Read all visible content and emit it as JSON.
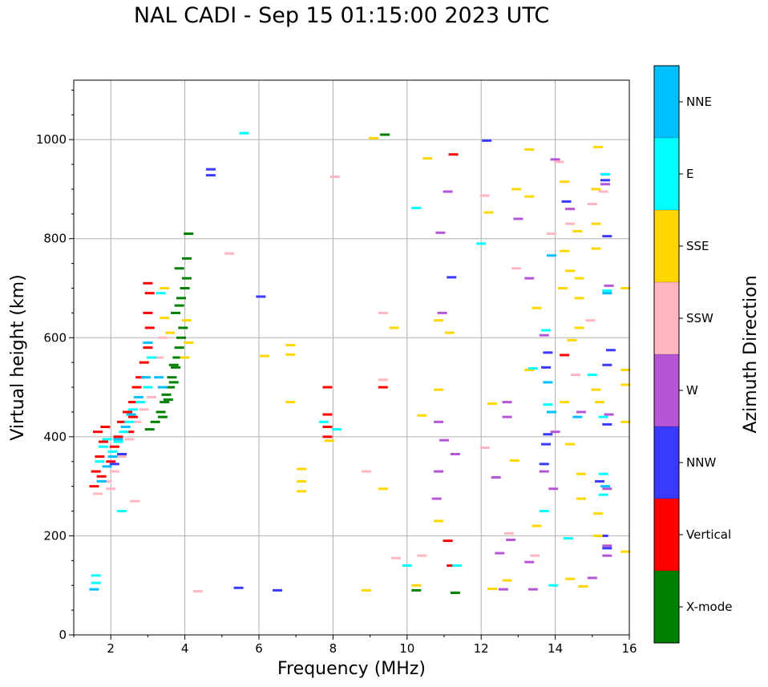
{
  "chart_data": {
    "type": "scatter",
    "title": "NAL CADI - Sep 15 01:15:00 2023 UTC",
    "xlabel": "Frequency (MHz)",
    "ylabel": "Virtual height (km)",
    "xlim": [
      1,
      16
    ],
    "ylim": [
      0,
      1120
    ],
    "xticks": [
      2,
      4,
      6,
      8,
      10,
      12,
      14,
      16
    ],
    "yticks": [
      0,
      200,
      400,
      600,
      800,
      1000
    ],
    "grid": true,
    "colorbar": {
      "label": "Azimuth Direction",
      "categories": [
        {
          "name": "X-mode",
          "color": "#008000"
        },
        {
          "name": "Vertical",
          "color": "#ff0000"
        },
        {
          "name": "NNW",
          "color": "#3a3aff"
        },
        {
          "name": "W",
          "color": "#b655d6"
        },
        {
          "name": "SSW",
          "color": "#ffb6c1"
        },
        {
          "name": "SSE",
          "color": "#ffd700"
        },
        {
          "name": "E",
          "color": "#00ffff"
        },
        {
          "name": "NNE",
          "color": "#00bfff"
        }
      ]
    },
    "series": [
      {
        "name": "X-mode",
        "points": [
          [
            3.05,
            415
          ],
          [
            3.2,
            430
          ],
          [
            3.35,
            450
          ],
          [
            3.45,
            470
          ],
          [
            3.5,
            485
          ],
          [
            3.6,
            500
          ],
          [
            3.65,
            520
          ],
          [
            3.75,
            540
          ],
          [
            3.8,
            560
          ],
          [
            3.85,
            580
          ],
          [
            3.9,
            600
          ],
          [
            3.95,
            620
          ],
          [
            3.75,
            650
          ],
          [
            3.85,
            665
          ],
          [
            3.9,
            680
          ],
          [
            4.0,
            700
          ],
          [
            4.05,
            720
          ],
          [
            4.05,
            760
          ],
          [
            4.1,
            810
          ],
          [
            3.85,
            740
          ],
          [
            9.4,
            1010
          ],
          [
            10.25,
            90
          ],
          [
            11.3,
            85
          ],
          [
            3.4,
            440
          ],
          [
            3.55,
            475
          ],
          [
            3.7,
            510
          ],
          [
            3.7,
            545
          ]
        ]
      },
      {
        "name": "Vertical",
        "points": [
          [
            1.55,
            300
          ],
          [
            1.6,
            330
          ],
          [
            1.7,
            360
          ],
          [
            1.8,
            390
          ],
          [
            1.85,
            420
          ],
          [
            2.0,
            350
          ],
          [
            2.1,
            380
          ],
          [
            2.2,
            400
          ],
          [
            2.3,
            430
          ],
          [
            2.45,
            450
          ],
          [
            2.6,
            470
          ],
          [
            2.7,
            500
          ],
          [
            2.8,
            520
          ],
          [
            2.9,
            550
          ],
          [
            3.0,
            580
          ],
          [
            3.05,
            620
          ],
          [
            3.0,
            650
          ],
          [
            3.05,
            690
          ],
          [
            3.0,
            710
          ],
          [
            7.85,
            400
          ],
          [
            7.85,
            420
          ],
          [
            7.85,
            445
          ],
          [
            7.85,
            500
          ],
          [
            9.35,
            500
          ],
          [
            11.2,
            140
          ],
          [
            11.25,
            970
          ],
          [
            11.1,
            190
          ],
          [
            14.25,
            565
          ],
          [
            2.5,
            410
          ],
          [
            2.6,
            440
          ],
          [
            1.65,
            410
          ],
          [
            1.75,
            320
          ]
        ]
      },
      {
        "name": "NNW",
        "points": [
          [
            4.7,
            940
          ],
          [
            4.7,
            928
          ],
          [
            5.45,
            95
          ],
          [
            6.5,
            90
          ],
          [
            15.4,
            805
          ],
          [
            15.5,
            575
          ],
          [
            15.4,
            545
          ],
          [
            15.4,
            425
          ],
          [
            15.2,
            310
          ],
          [
            15.3,
            200
          ],
          [
            15.4,
            175
          ],
          [
            15.35,
            930
          ],
          [
            15.35,
            918
          ],
          [
            13.8,
            570
          ],
          [
            13.75,
            540
          ],
          [
            13.8,
            405
          ],
          [
            13.75,
            385
          ],
          [
            13.7,
            345
          ],
          [
            14.3,
            875
          ],
          [
            11.2,
            722
          ],
          [
            6.05,
            683
          ],
          [
            12.15,
            998
          ],
          [
            2.1,
            345
          ],
          [
            2.3,
            365
          ]
        ]
      },
      {
        "name": "W",
        "points": [
          [
            12.7,
            440
          ],
          [
            12.7,
            470
          ],
          [
            12.8,
            192
          ],
          [
            12.5,
            165
          ],
          [
            12.6,
            92
          ],
          [
            13.4,
            92
          ],
          [
            13.3,
            147
          ],
          [
            13.0,
            840
          ],
          [
            13.3,
            720
          ],
          [
            13.7,
            330
          ],
          [
            13.95,
            295
          ],
          [
            14.0,
            410
          ],
          [
            14.4,
            860
          ],
          [
            14.0,
            960
          ],
          [
            15.0,
            115
          ],
          [
            15.4,
            160
          ],
          [
            15.4,
            180
          ],
          [
            15.4,
            295
          ],
          [
            15.45,
            445
          ],
          [
            15.35,
            910
          ],
          [
            15.45,
            705
          ],
          [
            10.85,
            330
          ],
          [
            10.8,
            275
          ],
          [
            10.85,
            430
          ],
          [
            11.0,
            393
          ],
          [
            11.3,
            365
          ],
          [
            11.1,
            895
          ],
          [
            10.95,
            650
          ],
          [
            10.9,
            812
          ],
          [
            12.4,
            318
          ],
          [
            13.7,
            605
          ],
          [
            14.7,
            450
          ]
        ]
      },
      {
        "name": "SSW",
        "points": [
          [
            1.65,
            285
          ],
          [
            1.9,
            310
          ],
          [
            2.1,
            330
          ],
          [
            2.3,
            360
          ],
          [
            2.5,
            395
          ],
          [
            2.7,
            430
          ],
          [
            2.9,
            455
          ],
          [
            3.1,
            480
          ],
          [
            3.3,
            560
          ],
          [
            3.4,
            600
          ],
          [
            4.35,
            88
          ],
          [
            8.05,
            925
          ],
          [
            8.9,
            330
          ],
          [
            9.35,
            515
          ],
          [
            9.35,
            650
          ],
          [
            9.7,
            155
          ],
          [
            10.4,
            160
          ],
          [
            12.1,
            887
          ],
          [
            12.1,
            378
          ],
          [
            12.75,
            205
          ],
          [
            12.95,
            740
          ],
          [
            13.45,
            160
          ],
          [
            13.9,
            810
          ],
          [
            14.1,
            955
          ],
          [
            14.4,
            830
          ],
          [
            14.55,
            525
          ],
          [
            14.95,
            635
          ],
          [
            15.0,
            870
          ],
          [
            15.3,
            895
          ],
          [
            15.4,
            690
          ],
          [
            5.2,
            770
          ],
          [
            2.65,
            270
          ],
          [
            2.0,
            295
          ]
        ]
      },
      {
        "name": "SSE",
        "points": [
          [
            3.45,
            700
          ],
          [
            3.45,
            640
          ],
          [
            3.6,
            610
          ],
          [
            4.05,
            635
          ],
          [
            4.1,
            590
          ],
          [
            4.0,
            560
          ],
          [
            6.15,
            563
          ],
          [
            6.85,
            585
          ],
          [
            6.85,
            566
          ],
          [
            6.85,
            470
          ],
          [
            7.15,
            335
          ],
          [
            7.15,
            310
          ],
          [
            7.15,
            290
          ],
          [
            7.9,
            392
          ],
          [
            8.9,
            90
          ],
          [
            9.1,
            1003
          ],
          [
            9.35,
            295
          ],
          [
            9.65,
            620
          ],
          [
            10.25,
            100
          ],
          [
            10.4,
            443
          ],
          [
            10.55,
            962
          ],
          [
            10.85,
            635
          ],
          [
            10.85,
            495
          ],
          [
            10.85,
            230
          ],
          [
            11.15,
            610
          ],
          [
            12.2,
            853
          ],
          [
            12.3,
            93
          ],
          [
            12.7,
            110
          ],
          [
            12.95,
            900
          ],
          [
            12.9,
            352
          ],
          [
            13.3,
            885
          ],
          [
            13.3,
            980
          ],
          [
            13.3,
            535
          ],
          [
            13.5,
            660
          ],
          [
            13.5,
            220
          ],
          [
            14.2,
            700
          ],
          [
            14.25,
            775
          ],
          [
            14.25,
            915
          ],
          [
            14.4,
            735
          ],
          [
            14.45,
            595
          ],
          [
            14.4,
            385
          ],
          [
            14.4,
            113
          ],
          [
            14.6,
            815
          ],
          [
            14.65,
            720
          ],
          [
            14.65,
            680
          ],
          [
            14.65,
            620
          ],
          [
            14.7,
            325
          ],
          [
            14.7,
            275
          ],
          [
            14.75,
            98
          ],
          [
            15.15,
            985
          ],
          [
            15.1,
            900
          ],
          [
            15.1,
            830
          ],
          [
            15.1,
            780
          ],
          [
            15.2,
            470
          ],
          [
            15.1,
            495
          ],
          [
            15.15,
            245
          ],
          [
            15.15,
            200
          ],
          [
            15.9,
            700
          ],
          [
            15.9,
            535
          ],
          [
            15.9,
            505
          ],
          [
            15.9,
            430
          ],
          [
            15.9,
            168
          ],
          [
            14.25,
            470
          ],
          [
            12.3,
            467
          ]
        ]
      },
      {
        "name": "E",
        "points": [
          [
            1.6,
            120
          ],
          [
            1.6,
            105
          ],
          [
            2.3,
            250
          ],
          [
            3.35,
            690
          ],
          [
            5.6,
            1013
          ],
          [
            7.75,
            430
          ],
          [
            8.1,
            415
          ],
          [
            10.25,
            862
          ],
          [
            12.0,
            790
          ],
          [
            13.4,
            538
          ],
          [
            13.75,
            615
          ],
          [
            13.8,
            465
          ],
          [
            13.7,
            250
          ],
          [
            13.95,
            100
          ],
          [
            14.35,
            195
          ],
          [
            15.0,
            525
          ],
          [
            15.3,
            325
          ],
          [
            15.3,
            440
          ],
          [
            15.3,
            283
          ],
          [
            15.35,
            930
          ],
          [
            15.4,
            695
          ],
          [
            1.7,
            350
          ],
          [
            1.8,
            380
          ],
          [
            1.9,
            395
          ],
          [
            2.05,
            370
          ],
          [
            2.2,
            390
          ],
          [
            2.35,
            410
          ],
          [
            2.5,
            430
          ],
          [
            2.6,
            455
          ],
          [
            2.8,
            470
          ],
          [
            3.0,
            500
          ],
          [
            3.1,
            560
          ],
          [
            10.0,
            140
          ],
          [
            11.35,
            140
          ]
        ]
      },
      {
        "name": "NNE",
        "points": [
          [
            1.55,
            92
          ],
          [
            1.75,
            310
          ],
          [
            1.9,
            340
          ],
          [
            2.05,
            360
          ],
          [
            2.2,
            395
          ],
          [
            2.4,
            420
          ],
          [
            2.55,
            445
          ],
          [
            2.75,
            480
          ],
          [
            2.95,
            520
          ],
          [
            3.0,
            590
          ],
          [
            3.3,
            520
          ],
          [
            3.4,
            500
          ],
          [
            13.9,
            766
          ],
          [
            13.8,
            510
          ],
          [
            13.9,
            450
          ],
          [
            14.6,
            440
          ],
          [
            15.35,
            300
          ],
          [
            15.4,
            690
          ]
        ]
      }
    ]
  }
}
